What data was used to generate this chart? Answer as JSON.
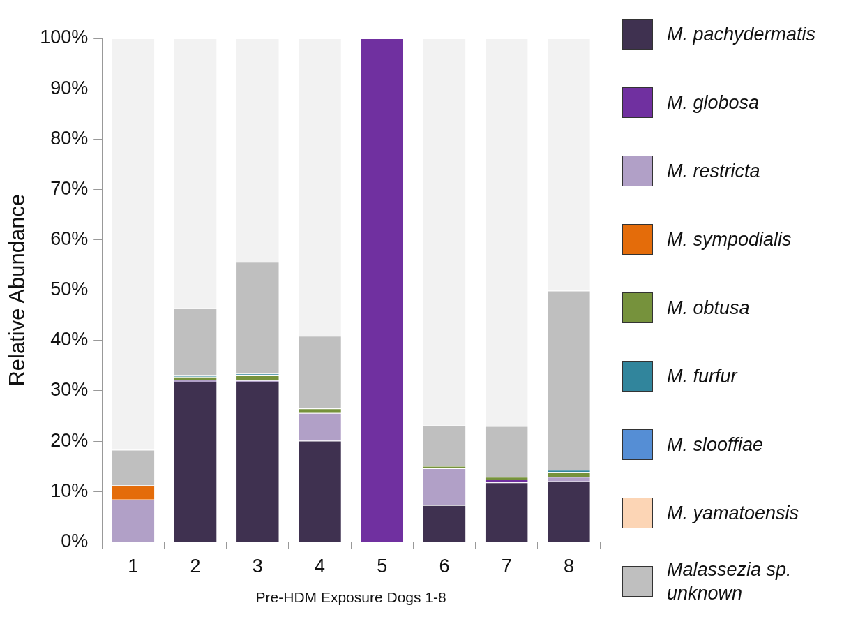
{
  "chart_data": {
    "type": "bar",
    "stacked": true,
    "xlabel": "Pre-HDM Exposure Dogs 1-8",
    "ylabel": "Relative Abundance",
    "categories": [
      "1",
      "2",
      "3",
      "4",
      "5",
      "6",
      "7",
      "8"
    ],
    "ylim": [
      0,
      100
    ],
    "yticks": [
      {
        "value": 0,
        "label": "0%"
      },
      {
        "value": 10,
        "label": "10%"
      },
      {
        "value": 20,
        "label": "20%"
      },
      {
        "value": 30,
        "label": "30%"
      },
      {
        "value": 40,
        "label": "40%"
      },
      {
        "value": 50,
        "label": "50%"
      },
      {
        "value": 60,
        "label": "60%"
      },
      {
        "value": 70,
        "label": "70%"
      },
      {
        "value": 80,
        "label": "80%"
      },
      {
        "value": 90,
        "label": "90%"
      },
      {
        "value": 100,
        "label": "100%"
      }
    ],
    "grid": false,
    "legend": "right",
    "series": [
      {
        "name": "M. pachydermatis",
        "color": "#3f3150",
        "values": [
          0,
          31.8,
          31.8,
          20.1,
          0,
          7.3,
          11.8,
          12.0
        ]
      },
      {
        "name": "M. globosa",
        "color": "#7030a0",
        "values": [
          0,
          0,
          0,
          0,
          100,
          0,
          0.6,
          0
        ]
      },
      {
        "name": "M. restricta",
        "color": "#b1a0c7",
        "values": [
          8.4,
          0.4,
          0.3,
          5.5,
          0,
          7.3,
          0,
          0.9
        ]
      },
      {
        "name": "M. sympodialis",
        "color": "#e46c0a",
        "values": [
          2.8,
          0,
          0,
          0,
          0,
          0,
          0,
          0
        ]
      },
      {
        "name": "M. obtusa",
        "color": "#76923c",
        "values": [
          0,
          0.6,
          1.1,
          0.9,
          0,
          0.5,
          0.5,
          1.0
        ]
      },
      {
        "name": "M. furfur",
        "color": "#31859c",
        "values": [
          0,
          0.3,
          0.2,
          0,
          0,
          0,
          0,
          0.4
        ]
      },
      {
        "name": "M. slooffiae",
        "color": "#558ed5",
        "values": [
          0,
          0,
          0,
          0,
          0,
          0,
          0,
          0
        ]
      },
      {
        "name": "M. yamatoensis",
        "color": "#fcd5b5",
        "values": [
          0,
          0,
          0,
          0,
          0,
          0,
          0,
          0
        ]
      },
      {
        "name": "Malassezia sp. unknown",
        "color": "#bfbfbf",
        "values": [
          7.1,
          13.3,
          22.2,
          14.4,
          0,
          8.0,
          10.1,
          35.6
        ]
      },
      {
        "color": "#f2f2f2",
        "values": [
          81.7,
          53.6,
          44.4,
          59.1,
          0,
          76.9,
          77.0,
          50.1
        ]
      }
    ]
  }
}
